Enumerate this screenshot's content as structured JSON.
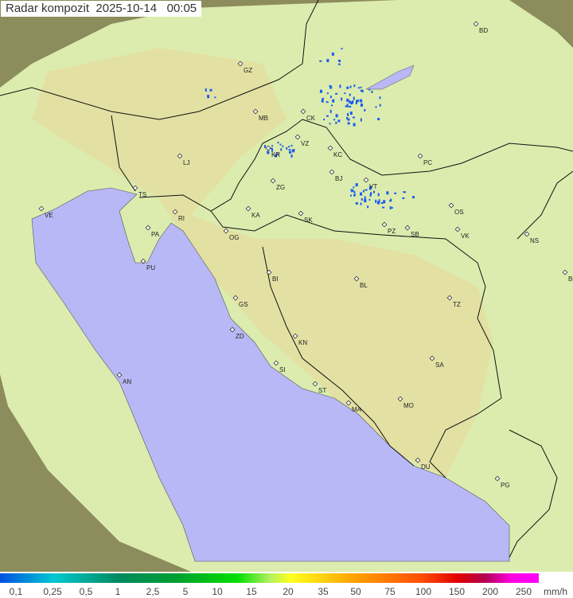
{
  "title": "Radar kompozit  2025-10-14   00:05",
  "legend": {
    "labels": [
      "0,1",
      "0,25",
      "0,5",
      "1",
      "2,5",
      "5",
      "10",
      "15",
      "20",
      "35",
      "50",
      "75",
      "100",
      "150",
      "200",
      "250"
    ],
    "unit": "mm/h"
  },
  "colors": {
    "sea": "#b8b8f6",
    "coverage": "#d8ecb0",
    "outside": "#8a8a5a",
    "precip": "#1a5cf0",
    "border": "#111111"
  },
  "cities": [
    "GZ",
    "BD",
    "MB",
    "CK",
    "LJ",
    "VZ",
    "KR",
    "KC",
    "PC",
    "ZG",
    "BJ",
    "VT",
    "TS",
    "VE",
    "KA",
    "SK",
    "OS",
    "RI",
    "PA",
    "OG",
    "PZ",
    "SB",
    "VK",
    "NS",
    "PU",
    "BG",
    "BI",
    "BL",
    "GS",
    "TZ",
    "ZD",
    "KN",
    "SA",
    "AN",
    "SI",
    "ST",
    "MA",
    "MO",
    "DU",
    "PG"
  ]
}
